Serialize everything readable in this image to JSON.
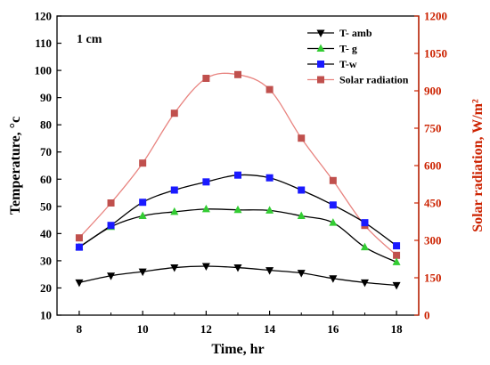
{
  "chart_data": {
    "type": "line",
    "annotation": "1 cm",
    "xlabel": "Time, hr",
    "ylabel_left": "Temperature, °c",
    "ylabel_right": "Solar radiation, W/m²",
    "xlim": [
      7.3,
      18.7
    ],
    "x_ticks": [
      8,
      10,
      12,
      14,
      16,
      18
    ],
    "ylim_left": [
      10,
      120
    ],
    "y_ticks_left": [
      10,
      20,
      30,
      40,
      50,
      60,
      70,
      80,
      90,
      100,
      110,
      120
    ],
    "ylim_right": [
      0,
      1200
    ],
    "y_ticks_right": [
      0,
      150,
      300,
      450,
      600,
      750,
      900,
      1050,
      1200
    ],
    "x": [
      8,
      9,
      10,
      11,
      12,
      13,
      14,
      15,
      16,
      17,
      18
    ],
    "series": [
      {
        "name": "T- amb",
        "axis": "left",
        "marker": "triangle-down",
        "color": "#000000",
        "values": [
          22,
          24.5,
          26,
          27.5,
          28,
          27.5,
          26.5,
          25.5,
          23.5,
          22,
          21
        ]
      },
      {
        "name": "T- g",
        "axis": "left",
        "marker": "triangle-up",
        "color": "#33cc33",
        "line_color": "#000000",
        "values": [
          35,
          42.5,
          46.5,
          48,
          49,
          48.7,
          48.5,
          46.5,
          44,
          35,
          29.5
        ]
      },
      {
        "name": "T-w",
        "axis": "left",
        "marker": "square",
        "color": "#1a1aff",
        "line_color": "#000000",
        "values": [
          35,
          43,
          51.5,
          56,
          59,
          61.5,
          60.5,
          56,
          50.5,
          44,
          35.5
        ]
      },
      {
        "name": "Solar radiation",
        "axis": "right",
        "marker": "square",
        "color": "#c0504d",
        "line_color": "#e8837f",
        "values": [
          310,
          450,
          610,
          810,
          950,
          965,
          905,
          710,
          540,
          360,
          240
        ]
      }
    ],
    "left_axis_color": "#000000",
    "right_axis_color": "#cc2200",
    "grid": false,
    "legend_position": "top-right"
  }
}
